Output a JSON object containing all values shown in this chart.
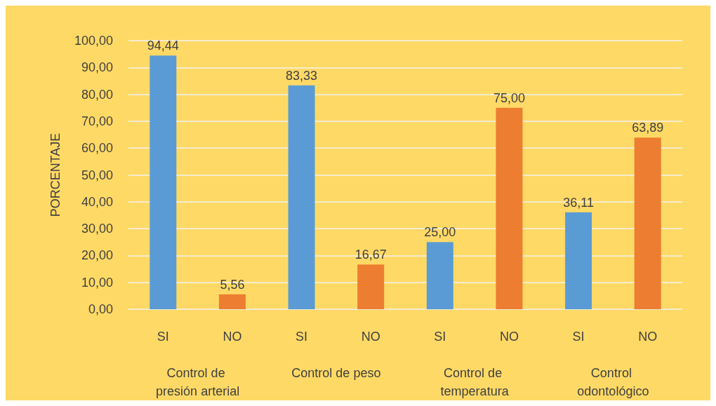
{
  "chart_data": {
    "type": "bar",
    "ylabel": "PORCENTAJE",
    "categories": [
      "SI",
      "NO",
      "SI",
      "NO",
      "SI",
      "NO",
      "SI",
      "NO"
    ],
    "values": [
      94.44,
      5.56,
      83.33,
      16.67,
      25.0,
      75.0,
      36.11,
      63.89
    ],
    "colors": [
      "#5b9bd5",
      "#ed7d31",
      "#5b9bd5",
      "#ed7d31",
      "#5b9bd5",
      "#ed7d31",
      "#5b9bd5",
      "#ed7d31"
    ],
    "value_labels": [
      "94,44",
      "5,56",
      "83,33",
      "16,67",
      "25,00",
      "75,00",
      "36,11",
      "63,89"
    ],
    "annotations": [
      "Control de presión arterial",
      "Control de peso",
      "Control de temperatura",
      "Control odontológico"
    ],
    "ylim": [
      0,
      100
    ],
    "yticks": [
      {
        "value": 0,
        "label": "0,00"
      },
      {
        "value": 10,
        "label": "10,00"
      },
      {
        "value": 20,
        "label": "20,00"
      },
      {
        "value": 30,
        "label": "30,00"
      },
      {
        "value": 40,
        "label": "40,00"
      },
      {
        "value": 50,
        "label": "50,00"
      },
      {
        "value": 60,
        "label": "60,00"
      },
      {
        "value": 70,
        "label": "70,00"
      },
      {
        "value": 80,
        "label": "80,00"
      },
      {
        "value": 90,
        "label": "90,00"
      },
      {
        "value": 100,
        "label": "100,00"
      }
    ],
    "grid": "y"
  }
}
